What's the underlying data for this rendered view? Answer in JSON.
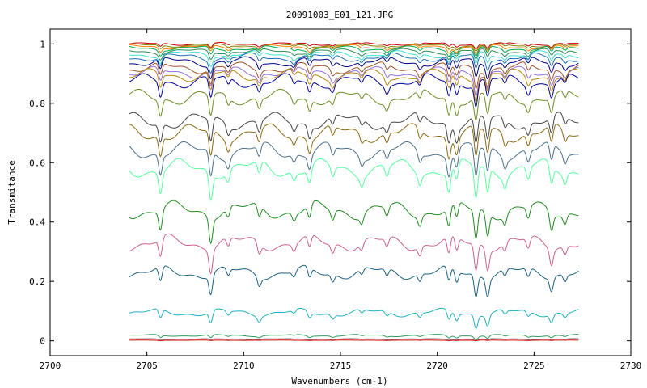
{
  "chart_data": {
    "type": "line",
    "title": "20091003_E01_121.JPG",
    "xlabel": "Wavenumbers (cm-1)",
    "ylabel": "Transmitance",
    "xlim": [
      2700,
      2730
    ],
    "ylim": [
      -0.05,
      1.05
    ],
    "x_ticks": [
      "2700",
      "2705",
      "2710",
      "2715",
      "2720",
      "2725",
      "2730"
    ],
    "y_ticks": [
      "0",
      "0.2",
      "0.4",
      "0.6",
      "0.8",
      "1"
    ],
    "x_range": [
      2704.1,
      2727.3
    ],
    "grid": false,
    "legend": "none",
    "absorption_lines": [
      {
        "x": 2705.7,
        "depth": 1.0
      },
      {
        "x": 2708.3,
        "depth": 1.3
      },
      {
        "x": 2709.2,
        "depth": 0.5
      },
      {
        "x": 2710.8,
        "depth": 0.6
      },
      {
        "x": 2712.6,
        "depth": 0.4
      },
      {
        "x": 2713.4,
        "depth": 0.7
      },
      {
        "x": 2714.6,
        "depth": 0.5
      },
      {
        "x": 2716.1,
        "depth": 0.4
      },
      {
        "x": 2717.4,
        "depth": 0.5
      },
      {
        "x": 2719.1,
        "depth": 0.5
      },
      {
        "x": 2720.6,
        "depth": 1.0
      },
      {
        "x": 2721.0,
        "depth": 0.8
      },
      {
        "x": 2722.0,
        "depth": 1.5
      },
      {
        "x": 2722.6,
        "depth": 1.2
      },
      {
        "x": 2723.5,
        "depth": 0.5
      },
      {
        "x": 2724.7,
        "depth": 0.6
      },
      {
        "x": 2725.9,
        "depth": 0.9
      },
      {
        "x": 2726.6,
        "depth": 0.5
      }
    ],
    "series": [
      {
        "level": 1.0,
        "color": "#cc0000",
        "depth": 0.01
      },
      {
        "level": 0.995,
        "color": "#7f7f00",
        "depth": 0.012
      },
      {
        "level": 0.99,
        "color": "#ff7f00",
        "depth": 0.015
      },
      {
        "level": 0.985,
        "color": "#00aa55",
        "depth": 0.018
      },
      {
        "level": 0.975,
        "color": "#2e8b57",
        "depth": 0.02
      },
      {
        "level": 0.965,
        "color": "#40e0d0",
        "depth": 0.025
      },
      {
        "level": 0.955,
        "color": "#1e6eb4",
        "depth": 0.03
      },
      {
        "level": 0.94,
        "color": "#000080",
        "depth": 0.035
      },
      {
        "level": 0.92,
        "color": "#a0522d",
        "depth": 0.04
      },
      {
        "level": 0.905,
        "color": "#9370db",
        "depth": 0.04
      },
      {
        "level": 0.895,
        "color": "#b8860b",
        "depth": 0.045
      },
      {
        "level": 0.875,
        "color": "#000099",
        "depth": 0.05
      },
      {
        "level": 0.82,
        "color": "#6b8e23",
        "depth": 0.055
      },
      {
        "level": 0.74,
        "color": "#444444",
        "depth": 0.06
      },
      {
        "level": 0.7,
        "color": "#8b6914",
        "depth": 0.065
      },
      {
        "level": 0.64,
        "color": "#4a708b",
        "depth": 0.065
      },
      {
        "level": 0.58,
        "color": "#54ff9f",
        "depth": 0.07
      },
      {
        "level": 0.44,
        "color": "#228b22",
        "depth": 0.065
      },
      {
        "level": 0.33,
        "color": "#cd6090",
        "depth": 0.06
      },
      {
        "level": 0.23,
        "color": "#1a6080",
        "depth": 0.05
      },
      {
        "level": 0.095,
        "color": "#20b2c0",
        "depth": 0.03
      },
      {
        "level": 0.018,
        "color": "#2e9b5e",
        "depth": 0.008
      },
      {
        "level": 0.006,
        "color": "#7f7f7f",
        "depth": 0.003
      },
      {
        "level": 0.002,
        "color": "#cc0000",
        "depth": 0.001
      }
    ]
  }
}
